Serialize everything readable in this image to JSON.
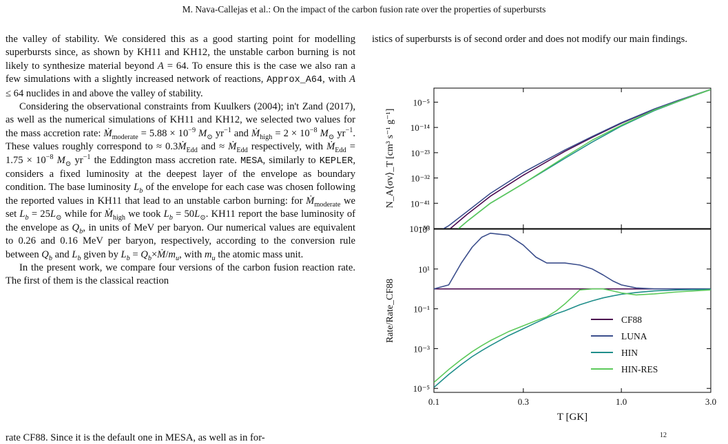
{
  "header": {
    "running_title": "M. Nava-Callejas et al.: On the impact of the carbon fusion rate over the properties of superbursts"
  },
  "left_column": {
    "p1": {
      "t1": "the valley of stability. We considered this as a good starting point for modelling superbursts since, as shown by KH11 and KH12, the unstable carbon burning is not likely to synthesize material beyond ",
      "A": "A",
      "t2": " = 64. To ensure this is the case we also ran a few simulations with a slightly increased network of reactions, ",
      "code": "Approx_A64",
      "t3": ", with ",
      "A2": "A",
      "t4": " ≤ 64 nuclides in and above the valley of stability."
    },
    "p2": {
      "t1": "Considering the observational constraints from Kuulkers (2004); in't Zand (2017), as well as the numerical simulations of KH11 and KH12, we selected two values for the mass accretion rate: ",
      "mdot": "Ṁ",
      "sub_moderate": "moderate",
      "val1": " = 5.88 × 10",
      "exp1": "−9",
      "unit1": " M",
      "sun": "⊙",
      "yr1": " yr",
      "yrexp": "−1",
      "t2": " and ",
      "sub_high": "high",
      "val2": " = 2 × 10",
      "exp2": "−8",
      "t3": ". These values roughly correspond to ≈ 0.3",
      "sub_edd": "Edd",
      "t4": " and ≈ ",
      "t5": " respectively, with ",
      "val3": " = 1.75 × 10",
      "t6": " the Eddington mass accretion rate. ",
      "mesa": "MESA",
      "t7": ", similarly to ",
      "kepler": "KEPLER",
      "t8": ", considers a fixed luminosity at the deepest layer of the envelope as boundary condition. The base luminosity ",
      "L": "L",
      "sub_b": "b",
      "t9": " of the envelope for each case was chosen following the reported values in KH11 that lead to an unstable carbon burning: for ",
      "t10": " we set ",
      "t11": " = 25",
      "t12": " while for ",
      "t13": " we took ",
      "t14": " = 50",
      "t15": ". KH11 report the base luminosity of the envelope as ",
      "Q": "Q",
      "t16": ", in units of MeV per baryon. Our numerical values are equivalent to 0.26 and 0.16 MeV per baryon, respectively, according to the conversion rule between ",
      "t17": " and ",
      "t18": " given by ",
      "t19": " = ",
      "t20": "×",
      "t21": "/",
      "m": "m",
      "sub_u": "u",
      "t22": ", with ",
      "t23": " the atomic mass unit."
    },
    "p3": {
      "t1": "In the present work, we compare four versions of the carbon fusion reaction rate. The first of them is the classical reaction"
    },
    "cut_line": "rate CF88. Since it is the default one in MESA, as well as in for-"
  },
  "right_column": {
    "text": "istics of superbursts is of second order and does not modify our main findings."
  },
  "figure": {
    "top_ylabel": "N_A⟨σv⟩_T [cm³ s⁻¹ g⁻¹]",
    "bottom_ylabel": "Rate/Rate_CF88",
    "xlabel": "T [GK]",
    "top_yticks": [
      "10⁻⁵",
      "10⁻¹⁴",
      "10⁻²³",
      "10⁻³²",
      "10⁻⁴¹",
      "10⁻⁵⁰"
    ],
    "bottom_yticks": [
      "10³",
      "10¹",
      "10⁻¹",
      "10⁻³",
      "10⁻⁵"
    ],
    "xticks": [
      "0.1",
      "0.3",
      "1.0",
      "3.0"
    ],
    "caption_fragment": "12",
    "colors": {
      "CF88": "#4b0a4f",
      "LUNA": "#3b4e8c",
      "HIN": "#1f8e8a",
      "HIN-RES": "#5cc95a"
    }
  },
  "chart_data": [
    {
      "type": "line",
      "xlabel": "T [GK]",
      "ylabel": "N_A⟨σv⟩_T [cm³ s⁻¹ g⁻¹]",
      "xscale": "log",
      "yscale": "log",
      "xlim": [
        0.1,
        3.0
      ],
      "ylim_log10": [
        -50,
        0
      ],
      "x": [
        0.1,
        0.12,
        0.15,
        0.2,
        0.3,
        0.5,
        0.7,
        1.0,
        1.5,
        2.0,
        3.0
      ],
      "series": [
        {
          "name": "CF88",
          "log10_values": [
            -55,
            -50.5,
            -45,
            -38.5,
            -31,
            -22.5,
            -17.5,
            -12.5,
            -7.5,
            -4.5,
            -0.5
          ]
        },
        {
          "name": "LUNA",
          "log10_values": [
            -52,
            -49,
            -44,
            -37.5,
            -30,
            -22,
            -17.2,
            -12.3,
            -7.4,
            -4.4,
            -0.5
          ]
        },
        {
          "name": "HIN",
          "log10_values": [
            -58,
            -53,
            -47.5,
            -41,
            -34,
            -25,
            -19.2,
            -13.5,
            -8.0,
            -4.8,
            -0.5
          ]
        },
        {
          "name": "HIN-RES",
          "log10_values": [
            -58,
            -53,
            -47.5,
            -41,
            -34,
            -24.5,
            -18.5,
            -13.2,
            -7.8,
            -4.7,
            -0.5
          ]
        }
      ],
      "grid": false
    },
    {
      "type": "line",
      "xlabel": "T [GK]",
      "ylabel": "Rate/Rate_CF88",
      "xscale": "log",
      "yscale": "log",
      "xlim": [
        0.1,
        3.0
      ],
      "ylim_log10": [
        -5.2,
        3
      ],
      "legend": "bottom-right",
      "x": [
        0.1,
        0.12,
        0.14,
        0.16,
        0.18,
        0.2,
        0.25,
        0.3,
        0.35,
        0.4,
        0.45,
        0.5,
        0.6,
        0.7,
        0.8,
        0.9,
        1.0,
        1.2,
        1.5,
        2.0,
        3.0
      ],
      "series": [
        {
          "name": "CF88",
          "log10_values": [
            0,
            0,
            0,
            0,
            0,
            0,
            0,
            0,
            0,
            0,
            0,
            0,
            0,
            0,
            0,
            0,
            0,
            0,
            0,
            0,
            0
          ]
        },
        {
          "name": "LUNA",
          "log10_values": [
            0,
            0.2,
            1.3,
            2.1,
            2.6,
            2.8,
            2.7,
            2.2,
            1.6,
            1.3,
            1.3,
            1.3,
            1.2,
            1.0,
            0.7,
            0.4,
            0.2,
            0.05,
            0,
            0,
            0
          ]
        },
        {
          "name": "HIN",
          "log10_values": [
            -4.95,
            -4.3,
            -3.8,
            -3.4,
            -3.1,
            -2.85,
            -2.35,
            -2.0,
            -1.7,
            -1.45,
            -1.25,
            -1.1,
            -0.8,
            -0.6,
            -0.45,
            -0.35,
            -0.27,
            -0.18,
            -0.1,
            -0.05,
            -0.02
          ]
        },
        {
          "name": "HIN-RES",
          "log10_values": [
            -4.7,
            -4.05,
            -3.55,
            -3.15,
            -2.85,
            -2.6,
            -2.15,
            -1.85,
            -1.6,
            -1.4,
            -1.1,
            -0.75,
            -0.05,
            0.0,
            0.0,
            -0.1,
            -0.2,
            -0.3,
            -0.25,
            -0.15,
            -0.05
          ]
        }
      ]
    }
  ]
}
